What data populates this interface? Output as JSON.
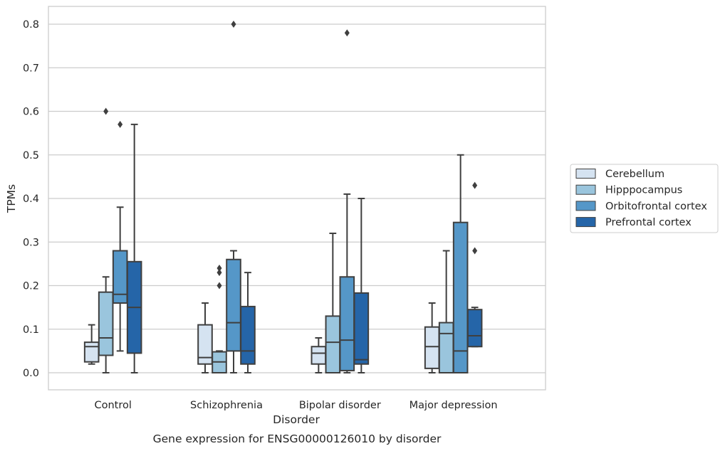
{
  "chart_data": {
    "type": "box",
    "title": "",
    "caption": "Gene expression for ENSG00000126010 by disorder",
    "xlabel": "Disorder",
    "ylabel": "TPMs",
    "ylim": [
      -0.04,
      0.84
    ],
    "yticks": [
      "0.0",
      "0.1",
      "0.2",
      "0.3",
      "0.4",
      "0.5",
      "0.6",
      "0.7",
      "0.8"
    ],
    "grid": true,
    "legend_position": "right",
    "categories": [
      "Control",
      "Schizophrenia",
      "Bipolar disorder",
      "Major depression"
    ],
    "series": [
      {
        "name": "Cerebellum",
        "color": "#d5e3f1",
        "boxes": [
          {
            "whislo": 0.02,
            "q1": 0.025,
            "med": 0.06,
            "q3": 0.07,
            "whishi": 0.11,
            "fliers": []
          },
          {
            "whislo": 0.0,
            "q1": 0.02,
            "med": 0.035,
            "q3": 0.11,
            "whishi": 0.16,
            "fliers": []
          },
          {
            "whislo": 0.0,
            "q1": 0.02,
            "med": 0.045,
            "q3": 0.06,
            "whishi": 0.08,
            "fliers": []
          },
          {
            "whislo": 0.0,
            "q1": 0.01,
            "med": 0.06,
            "q3": 0.105,
            "whishi": 0.16,
            "fliers": []
          }
        ]
      },
      {
        "name": "Hipppocampus",
        "color": "#9ac5dd",
        "boxes": [
          {
            "whislo": 0.0,
            "q1": 0.04,
            "med": 0.08,
            "q3": 0.185,
            "whishi": 0.22,
            "fliers": [
              0.6
            ]
          },
          {
            "whislo": 0.0,
            "q1": 0.0,
            "med": 0.025,
            "q3": 0.048,
            "whishi": 0.05,
            "fliers": [
              0.2,
              0.23,
              0.24
            ]
          },
          {
            "whislo": 0.0,
            "q1": 0.0,
            "med": 0.07,
            "q3": 0.13,
            "whishi": 0.32,
            "fliers": []
          },
          {
            "whislo": 0.0,
            "q1": 0.0,
            "med": 0.09,
            "q3": 0.115,
            "whishi": 0.28,
            "fliers": []
          }
        ]
      },
      {
        "name": "Orbitofrontal cortex",
        "color": "#5597c8",
        "boxes": [
          {
            "whislo": 0.05,
            "q1": 0.16,
            "med": 0.18,
            "q3": 0.28,
            "whishi": 0.38,
            "fliers": [
              0.57
            ]
          },
          {
            "whislo": 0.0,
            "q1": 0.05,
            "med": 0.115,
            "q3": 0.26,
            "whishi": 0.28,
            "fliers": [
              0.8
            ]
          },
          {
            "whislo": 0.0,
            "q1": 0.005,
            "med": 0.075,
            "q3": 0.22,
            "whishi": 0.41,
            "fliers": [
              0.78
            ]
          },
          {
            "whislo": 0.0,
            "q1": 0.0,
            "med": 0.05,
            "q3": 0.345,
            "whishi": 0.5,
            "fliers": []
          }
        ]
      },
      {
        "name": "Prefrontal cortex",
        "color": "#2565a8",
        "boxes": [
          {
            "whislo": 0.0,
            "q1": 0.045,
            "med": 0.15,
            "q3": 0.255,
            "whishi": 0.57,
            "fliers": []
          },
          {
            "whislo": 0.0,
            "q1": 0.02,
            "med": 0.05,
            "q3": 0.152,
            "whishi": 0.23,
            "fliers": []
          },
          {
            "whislo": 0.0,
            "q1": 0.02,
            "med": 0.03,
            "q3": 0.183,
            "whishi": 0.4,
            "fliers": []
          },
          {
            "whislo": 0.06,
            "q1": 0.06,
            "med": 0.085,
            "q3": 0.145,
            "whishi": 0.15,
            "fliers": [
              0.28,
              0.43
            ]
          }
        ]
      }
    ]
  }
}
